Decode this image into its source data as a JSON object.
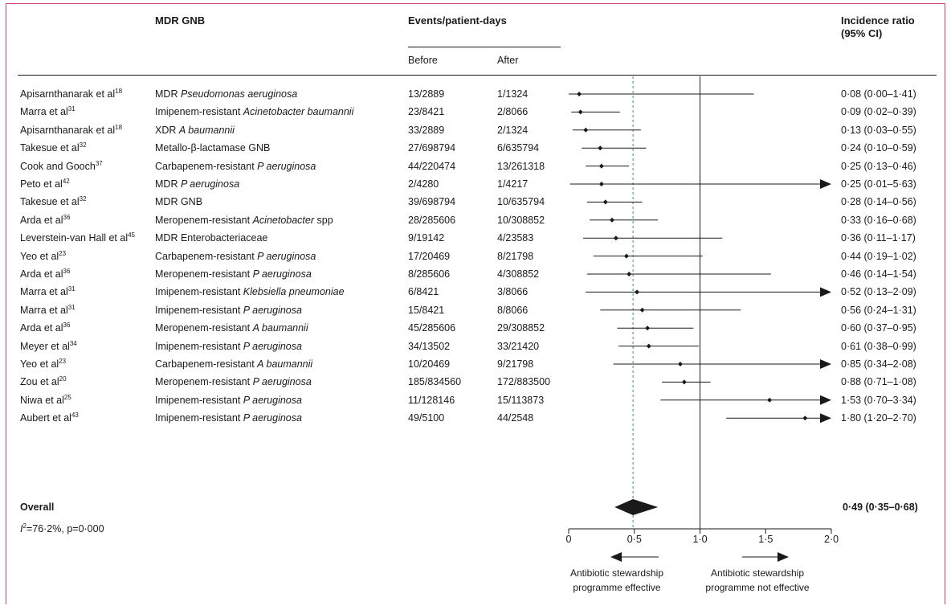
{
  "columns": {
    "mdr_gnb": "MDR GNB",
    "events": "Events/patient-days",
    "before": "Before",
    "after": "After",
    "ir_line1": "Incidence ratio",
    "ir_line2": "(95% CI)"
  },
  "rows": [
    {
      "study": "Apisarnthanarak et al",
      "ref": "18",
      "organism_plain": "MDR ",
      "organism_italic": "Pseudomonas aeruginosa",
      "organism_tail": "",
      "before": "13/2889",
      "after": "1/1324",
      "ci_text": "0·08 (0·00–1·41)"
    },
    {
      "study": "Marra et al",
      "ref": "31",
      "organism_plain": "Imipenem-resistant ",
      "organism_italic": "Acinetobacter baumannii",
      "organism_tail": "",
      "before": "23/8421",
      "after": "2/8066",
      "ci_text": "0·09 (0·02–0·39)"
    },
    {
      "study": "Apisarnthanarak et al",
      "ref": "18",
      "organism_plain": "XDR ",
      "organism_italic": "A baumannii",
      "organism_tail": "",
      "before": "33/2889",
      "after": "2/1324",
      "ci_text": "0·13 (0·03–0·55)"
    },
    {
      "study": "Takesue et al",
      "ref": "32",
      "organism_plain": "Metallo-β-lactamase GNB",
      "organism_italic": "",
      "organism_tail": "",
      "before": "27/698794",
      "after": "6/635794",
      "ci_text": "0·24 (0·10–0·59)"
    },
    {
      "study": "Cook and Gooch",
      "ref": "37",
      "organism_plain": "Carbapenem-resistant ",
      "organism_italic": "P aeruginosa",
      "organism_tail": "",
      "before": "44/220474",
      "after": "13/261318",
      "ci_text": "0·25 (0·13–0·46)"
    },
    {
      "study": "Peto et al",
      "ref": "42",
      "organism_plain": "MDR ",
      "organism_italic": "P aeruginosa",
      "organism_tail": "",
      "before": "2/4280",
      "after": "1/4217",
      "ci_text": "0·25 (0·01–5·63)"
    },
    {
      "study": "Takesue et al",
      "ref": "32",
      "organism_plain": "MDR GNB",
      "organism_italic": "",
      "organism_tail": "",
      "before": "39/698794",
      "after": "10/635794",
      "ci_text": "0·28 (0·14–0·56)"
    },
    {
      "study": "Arda et al",
      "ref": "36",
      "organism_plain": "Meropenem-resistant ",
      "organism_italic": "Acinetobacter",
      "organism_tail": " spp",
      "before": "28/285606",
      "after": "10/308852",
      "ci_text": "0·33 (0·16–0·68)"
    },
    {
      "study": "Leverstein-van Hall et al",
      "ref": "45",
      "organism_plain": "MDR Enterobacteriaceae",
      "organism_italic": "",
      "organism_tail": "",
      "before": "9/19142",
      "after": "4/23583",
      "ci_text": "0·36 (0·11–1·17)"
    },
    {
      "study": "Yeo et al",
      "ref": "23",
      "organism_plain": "Carbapenem-resistant ",
      "organism_italic": "P aeruginosa",
      "organism_tail": "",
      "before": "17/20469",
      "after": "8/21798",
      "ci_text": "0·44 (0·19–1·02)"
    },
    {
      "study": "Arda et al",
      "ref": "36",
      "organism_plain": "Meropenem-resistant ",
      "organism_italic": "P aeruginosa",
      "organism_tail": "",
      "before": "8/285606",
      "after": "4/308852",
      "ci_text": "0·46 (0·14–1·54)"
    },
    {
      "study": "Marra et al",
      "ref": "31",
      "organism_plain": "Imipenem-resistant ",
      "organism_italic": "Klebsiella pneumoniae",
      "organism_tail": "",
      "before": "6/8421",
      "after": "3/8066",
      "ci_text": "0·52 (0·13–2·09)"
    },
    {
      "study": "Marra et al",
      "ref": "31",
      "organism_plain": "Imipenem-resistant ",
      "organism_italic": "P aeruginosa",
      "organism_tail": "",
      "before": "15/8421",
      "after": "8/8066",
      "ci_text": "0·56 (0·24–1·31)"
    },
    {
      "study": "Arda et al",
      "ref": "36",
      "organism_plain": "Meropenem-resistant ",
      "organism_italic": "A baumannii",
      "organism_tail": "",
      "before": "45/285606",
      "after": "29/308852",
      "ci_text": "0·60 (0·37–0·95)"
    },
    {
      "study": "Meyer et al",
      "ref": "34",
      "organism_plain": "Imipenem-resistant ",
      "organism_italic": "P aeruginosa",
      "organism_tail": "",
      "before": "34/13502",
      "after": "33/21420",
      "ci_text": "0·61 (0·38–0·99)"
    },
    {
      "study": "Yeo et al",
      "ref": "23",
      "organism_plain": "Carbapenem-resistant ",
      "organism_italic": "A baumannii",
      "organism_tail": "",
      "before": "10/20469",
      "after": "9/21798",
      "ci_text": "0·85 (0·34–2·08)"
    },
    {
      "study": "Zou et al",
      "ref": "20",
      "organism_plain": "Meropenem-resistant ",
      "organism_italic": "P aeruginosa",
      "organism_tail": "",
      "before": "185/834560",
      "after": "172/883500",
      "ci_text": "0·88 (0·71–1·08)"
    },
    {
      "study": "Niwa et al",
      "ref": "25",
      "organism_plain": "Imipenem-resistant ",
      "organism_italic": "P aeruginosa",
      "organism_tail": "",
      "before": "11/128146",
      "after": "15/113873",
      "ci_text": "1·53 (0·70–3·34)"
    },
    {
      "study": "Aubert et al",
      "ref": "43",
      "organism_plain": "Imipenem-resistant ",
      "organism_italic": "P aeruginosa",
      "organism_tail": "",
      "before": "49/5100",
      "after": "44/2548",
      "ci_text": "1·80 (1·20–2·70)"
    }
  ],
  "overall": {
    "label": "Overall",
    "ci_text": "0·49 (0·35–0·68)"
  },
  "heterogeneity": {
    "i_symbol": "I",
    "sup": "2",
    "text": "=76·2%, p=0·000"
  },
  "axis": {
    "ticks": [
      "0",
      "0·5",
      "1·0",
      "1·5",
      "2·0"
    ]
  },
  "arrow_labels": {
    "left_line1": "Antibiotic stewardship",
    "left_line2": "programme effective",
    "right_line1": "Antibiotic stewardship",
    "right_line2": "programme not effective"
  },
  "colors": {
    "frame": "#c8457a",
    "reference_line": "#3a8a8a",
    "ink": "#1a1a1a"
  },
  "chart_data": {
    "type": "forest",
    "xlim": [
      0,
      2.0
    ],
    "x_ticks": [
      0,
      0.5,
      1.0,
      1.5,
      2.0
    ],
    "null_line": 1.0,
    "pooled_line": 0.49,
    "studies": [
      {
        "ratio": 0.08,
        "low": 0.0,
        "high": 1.41
      },
      {
        "ratio": 0.09,
        "low": 0.02,
        "high": 0.39
      },
      {
        "ratio": 0.13,
        "low": 0.03,
        "high": 0.55
      },
      {
        "ratio": 0.24,
        "low": 0.1,
        "high": 0.59
      },
      {
        "ratio": 0.25,
        "low": 0.13,
        "high": 0.46
      },
      {
        "ratio": 0.25,
        "low": 0.01,
        "high": 5.63
      },
      {
        "ratio": 0.28,
        "low": 0.14,
        "high": 0.56
      },
      {
        "ratio": 0.33,
        "low": 0.16,
        "high": 0.68
      },
      {
        "ratio": 0.36,
        "low": 0.11,
        "high": 1.17
      },
      {
        "ratio": 0.44,
        "low": 0.19,
        "high": 1.02
      },
      {
        "ratio": 0.46,
        "low": 0.14,
        "high": 1.54
      },
      {
        "ratio": 0.52,
        "low": 0.13,
        "high": 2.09
      },
      {
        "ratio": 0.56,
        "low": 0.24,
        "high": 1.31
      },
      {
        "ratio": 0.6,
        "low": 0.37,
        "high": 0.95
      },
      {
        "ratio": 0.61,
        "low": 0.38,
        "high": 0.99
      },
      {
        "ratio": 0.85,
        "low": 0.34,
        "high": 2.08
      },
      {
        "ratio": 0.88,
        "low": 0.71,
        "high": 1.08
      },
      {
        "ratio": 1.53,
        "low": 0.7,
        "high": 3.34
      },
      {
        "ratio": 1.8,
        "low": 1.2,
        "high": 2.7
      }
    ],
    "overall": {
      "ratio": 0.49,
      "low": 0.35,
      "high": 0.68
    }
  }
}
